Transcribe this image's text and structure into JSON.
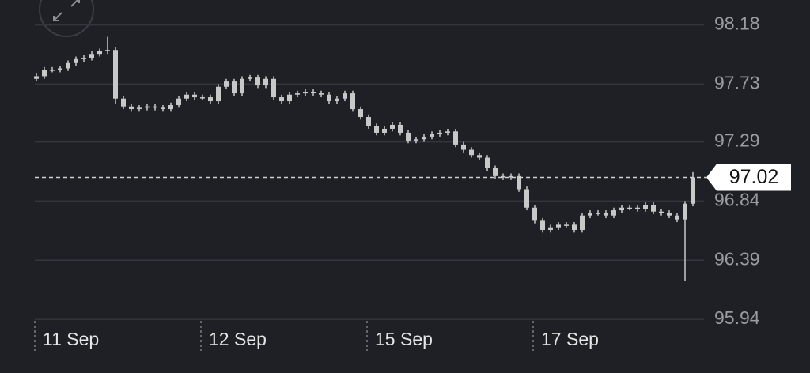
{
  "chart_data": {
    "type": "candlestick",
    "open": [
      97.77,
      97.79,
      97.84,
      97.84,
      97.85,
      97.89,
      97.92,
      97.93,
      97.96,
      97.98,
      97.99,
      97.62,
      97.56,
      97.54,
      97.55,
      97.56,
      97.55,
      97.54,
      97.57,
      97.62,
      97.65,
      97.63,
      97.63,
      97.6,
      97.71,
      97.75,
      97.66,
      97.77,
      97.78,
      97.72,
      97.77,
      97.63,
      97.6,
      97.65,
      97.66,
      97.67,
      97.66,
      97.65,
      97.6,
      97.62,
      97.66,
      97.54,
      97.48,
      97.41,
      97.36,
      97.39,
      97.42,
      97.36,
      97.3,
      97.31,
      97.33,
      97.35,
      97.36,
      97.37,
      97.27,
      97.23,
      97.19,
      97.17,
      97.09,
      97.03,
      97.02,
      97.03,
      96.93,
      96.79,
      96.69,
      96.62,
      96.64,
      96.66,
      96.66,
      96.62,
      96.73,
      96.75,
      96.75,
      96.73,
      96.77,
      96.79,
      96.79,
      96.78,
      96.81,
      96.76,
      96.75,
      96.73,
      96.7,
      96.82
    ],
    "high": [
      97.81,
      97.86,
      97.86,
      97.87,
      97.91,
      97.94,
      97.95,
      97.98,
      98.0,
      98.09,
      98.01,
      97.64,
      97.58,
      97.57,
      97.58,
      97.58,
      97.57,
      97.59,
      97.64,
      97.67,
      97.67,
      97.65,
      97.65,
      97.73,
      97.77,
      97.77,
      97.79,
      97.8,
      97.8,
      97.79,
      97.79,
      97.65,
      97.67,
      97.68,
      97.69,
      97.69,
      97.68,
      97.67,
      97.64,
      97.68,
      97.68,
      97.56,
      97.5,
      97.43,
      97.41,
      97.44,
      97.44,
      97.38,
      97.33,
      97.35,
      97.37,
      97.38,
      97.39,
      97.39,
      97.29,
      97.25,
      97.21,
      97.19,
      97.11,
      97.05,
      97.05,
      97.05,
      96.95,
      96.81,
      96.71,
      96.66,
      96.68,
      96.68,
      96.68,
      96.75,
      96.77,
      96.77,
      96.77,
      96.79,
      96.81,
      96.81,
      96.81,
      96.83,
      96.83,
      96.78,
      96.77,
      96.75,
      96.84,
      97.06
    ],
    "low": [
      97.75,
      97.77,
      97.82,
      97.82,
      97.83,
      97.87,
      97.9,
      97.91,
      97.94,
      97.96,
      97.58,
      97.54,
      97.52,
      97.52,
      97.53,
      97.53,
      97.52,
      97.52,
      97.55,
      97.6,
      97.61,
      97.61,
      97.58,
      97.58,
      97.69,
      97.64,
      97.64,
      97.75,
      97.7,
      97.7,
      97.61,
      97.58,
      97.58,
      97.63,
      97.64,
      97.64,
      97.63,
      97.58,
      97.58,
      97.6,
      97.52,
      97.46,
      97.39,
      97.34,
      97.34,
      97.37,
      97.34,
      97.28,
      97.28,
      97.29,
      97.31,
      97.33,
      97.34,
      97.25,
      97.21,
      97.17,
      97.15,
      97.07,
      97.01,
      97.0,
      97.0,
      96.91,
      96.77,
      96.67,
      96.6,
      96.6,
      96.62,
      96.64,
      96.6,
      96.6,
      96.71,
      96.73,
      96.71,
      96.71,
      96.75,
      96.77,
      96.76,
      96.76,
      96.74,
      96.73,
      96.71,
      96.68,
      96.23,
      96.8
    ],
    "close": [
      97.79,
      97.84,
      97.84,
      97.85,
      97.89,
      97.92,
      97.93,
      97.96,
      97.98,
      97.99,
      97.62,
      97.56,
      97.54,
      97.55,
      97.56,
      97.55,
      97.54,
      97.57,
      97.62,
      97.65,
      97.63,
      97.63,
      97.6,
      97.71,
      97.75,
      97.66,
      97.77,
      97.78,
      97.72,
      97.77,
      97.63,
      97.6,
      97.65,
      97.66,
      97.67,
      97.66,
      97.65,
      97.6,
      97.62,
      97.66,
      97.54,
      97.48,
      97.41,
      97.36,
      97.39,
      97.42,
      97.36,
      97.3,
      97.31,
      97.33,
      97.35,
      97.36,
      97.37,
      97.27,
      97.23,
      97.19,
      97.17,
      97.09,
      97.03,
      97.02,
      97.03,
      96.93,
      96.79,
      96.69,
      96.62,
      96.64,
      96.66,
      96.66,
      96.62,
      96.73,
      96.75,
      96.75,
      96.73,
      96.77,
      96.79,
      96.79,
      96.78,
      96.81,
      96.76,
      96.75,
      96.73,
      96.7,
      96.82,
      97.02
    ],
    "color": "#c8c8c8",
    "ylim": [
      95.7,
      98.37
    ],
    "yticks": [
      98.18,
      97.73,
      97.29,
      96.84,
      96.39,
      95.94
    ],
    "xticks": [
      {
        "value": 0,
        "label": "11 Sep"
      },
      {
        "value": 21,
        "label": "12 Sep"
      },
      {
        "value": 42,
        "label": "15 Sep"
      },
      {
        "value": 63,
        "label": "17 Sep"
      }
    ],
    "last_price": 97.02,
    "grid": true
  }
}
